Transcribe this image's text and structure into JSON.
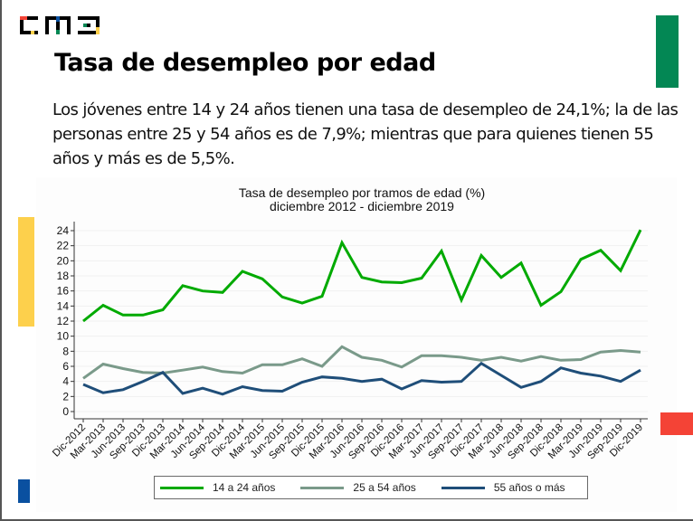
{
  "logo": {
    "text": "CMS",
    "colors": [
      "#000000",
      "#F44336",
      "#0A50A0",
      "#038754",
      "#FDD04C"
    ]
  },
  "slide": {
    "title": "Tasa de desempleo por edad",
    "body": "Los jóvenes entre 14 y 24 años tienen una tasa de desempleo de 24,1%; la de las personas entre 25 y 54 años es de 7,9%; mientras que para quienes tienen 55 años y más es de 5,5%."
  },
  "decorations": {
    "green": "#038754",
    "yellow": "#FDD04C",
    "red": "#F44336",
    "blue": "#0A50A0"
  },
  "chart_data": {
    "type": "line",
    "title": "Tasa de desempleo por tramos de edad (%)",
    "subtitle": "diciembre 2012 - diciembre 2019",
    "xlabel": "",
    "ylabel": "",
    "ylim": [
      0,
      24
    ],
    "yticks": [
      0,
      2,
      4,
      6,
      8,
      10,
      12,
      14,
      16,
      18,
      20,
      22,
      24
    ],
    "grid": true,
    "legend_position": "bottom",
    "categories": [
      "Dic-2012",
      "Mar-2013",
      "Jun-2013",
      "Sep-2013",
      "Dic-2013",
      "Mar-2014",
      "Jun-2014",
      "Sep-2014",
      "Dic-2014",
      "Mar-2015",
      "Jun-2015",
      "Sep-2015",
      "Dic-2015",
      "Mar-2016",
      "Jun-2016",
      "Sep-2016",
      "Dic-2016",
      "Mar-2017",
      "Jun-2017",
      "Sep-2017",
      "Dic-2017",
      "Mar-2018",
      "Jun-2018",
      "Sep-2018",
      "Dic-2018",
      "Mar-2019",
      "Jun-2019",
      "Sep-2019",
      "Dic-2019"
    ],
    "series": [
      {
        "name": "14 a 24 años",
        "color": "#00AA00",
        "values": [
          12.0,
          14.1,
          12.8,
          12.8,
          13.5,
          16.7,
          16.0,
          15.8,
          18.6,
          17.6,
          15.2,
          14.4,
          15.3,
          22.4,
          17.8,
          17.2,
          17.1,
          17.7,
          21.3,
          14.8,
          20.7,
          17.8,
          19.7,
          14.1,
          15.9,
          20.2,
          21.4,
          18.7,
          24.1
        ]
      },
      {
        "name": "25 a 54 años",
        "color": "#7A9A8A",
        "values": [
          4.4,
          6.3,
          5.7,
          5.2,
          5.1,
          5.5,
          5.9,
          5.3,
          5.1,
          6.2,
          6.2,
          7.0,
          6.0,
          8.6,
          7.2,
          6.8,
          5.9,
          7.4,
          7.4,
          7.2,
          6.8,
          7.2,
          6.7,
          7.3,
          6.8,
          6.9,
          7.9,
          8.1,
          7.9
        ]
      },
      {
        "name": "55 años o más",
        "color": "#1F4E79",
        "values": [
          3.6,
          2.5,
          2.9,
          4.0,
          5.2,
          2.4,
          3.1,
          2.3,
          3.3,
          2.8,
          2.7,
          3.9,
          4.6,
          4.4,
          4.0,
          4.3,
          3.0,
          4.1,
          3.9,
          4.0,
          6.4,
          4.8,
          3.2,
          4.0,
          5.8,
          5.1,
          4.7,
          4.0,
          5.5
        ]
      }
    ]
  }
}
